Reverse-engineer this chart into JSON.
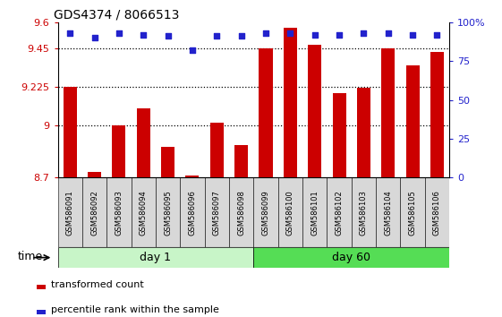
{
  "title": "GDS4374 / 8066513",
  "samples": [
    "GSM586091",
    "GSM586092",
    "GSM586093",
    "GSM586094",
    "GSM586095",
    "GSM586096",
    "GSM586097",
    "GSM586098",
    "GSM586099",
    "GSM586100",
    "GSM586101",
    "GSM586102",
    "GSM586103",
    "GSM586104",
    "GSM586105",
    "GSM586106"
  ],
  "red_values": [
    9.225,
    8.73,
    9.0,
    9.1,
    8.88,
    8.71,
    9.02,
    8.89,
    9.45,
    9.57,
    9.47,
    9.19,
    9.22,
    9.45,
    9.35,
    9.43
  ],
  "blue_values_pct": [
    93,
    90,
    93,
    92,
    91,
    82,
    91,
    91,
    93,
    93,
    92,
    92,
    93,
    93,
    92,
    92
  ],
  "groups": [
    {
      "label": "day 1",
      "start": 0,
      "end": 7,
      "color": "#c8f5c8"
    },
    {
      "label": "day 60",
      "start": 8,
      "end": 15,
      "color": "#55dd55"
    }
  ],
  "bar_color": "#CC0000",
  "dot_color": "#2222CC",
  "ylim_left": [
    8.7,
    9.6
  ],
  "yticks_left": [
    8.7,
    9.0,
    9.225,
    9.45,
    9.6
  ],
  "ytick_labels_left": [
    "8.7",
    "9",
    "9.225",
    "9.45",
    "9.6"
  ],
  "ylim_right": [
    0,
    100
  ],
  "yticks_right": [
    0,
    25,
    50,
    75,
    100
  ],
  "ytick_labels_right": [
    "0",
    "25",
    "50",
    "75",
    "100%"
  ],
  "hlines": [
    9.0,
    9.225,
    9.45
  ],
  "bar_width": 0.55,
  "legend_red": "transformed count",
  "legend_blue": "percentile rank within the sample",
  "xlabel_time": "time"
}
